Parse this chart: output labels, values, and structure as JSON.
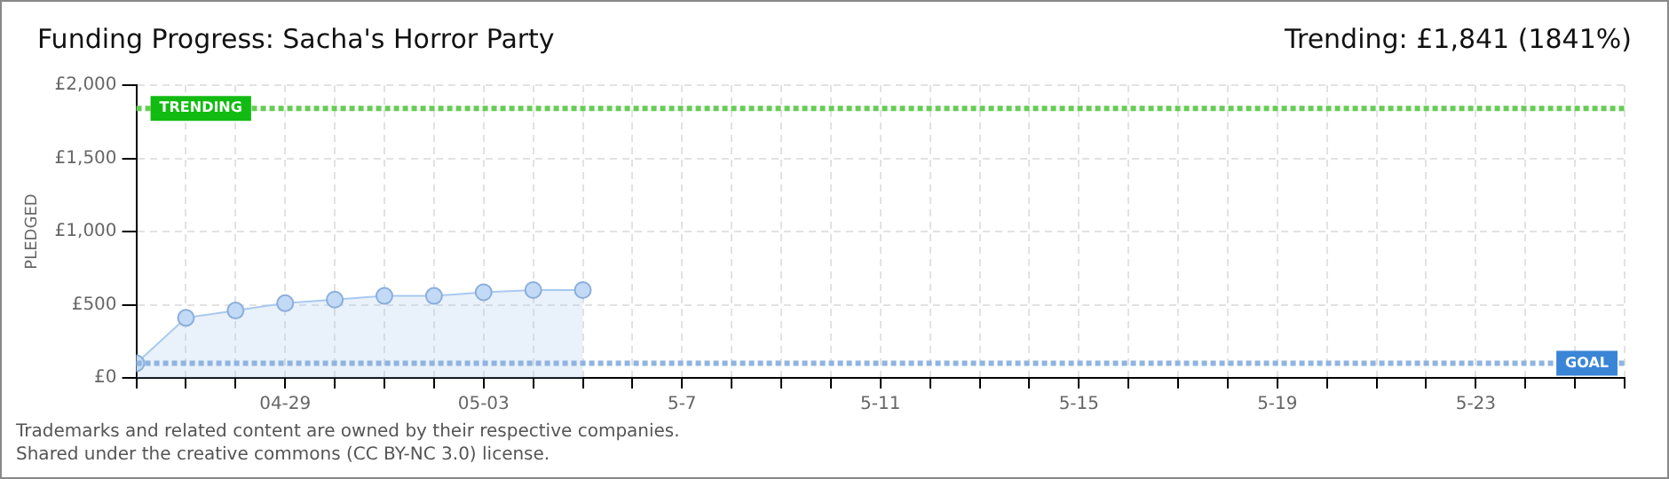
{
  "chart_data": {
    "type": "area",
    "title": "Funding Progress: Sacha's Horror Party",
    "subtitle": "Trending: £1,841 (1841%)",
    "ylabel": "PLEDGED",
    "x": [
      "--04-26",
      "--04-27",
      "--04-28",
      "--04-29",
      "--04-30",
      "--05-01",
      "--05-02",
      "--05-03",
      "--05-04",
      "--05-05"
    ],
    "series": [
      {
        "color": "#a9c9ef",
        "values": [
          100,
          410,
          460,
          510,
          535,
          560,
          560,
          585,
          600,
          600
        ]
      }
    ],
    "xlim": [
      "--04-26",
      "--05-26"
    ],
    "xticks": [
      {
        "value": "--04-26",
        "label": null
      },
      {
        "value": "--04-27",
        "label": null
      },
      {
        "value": "--04-28",
        "label": null
      },
      {
        "value": "--04-29",
        "label": "04-29"
      },
      {
        "value": "--04-30",
        "label": null
      },
      {
        "value": "--05-01",
        "label": null
      },
      {
        "value": "--05-02",
        "label": null
      },
      {
        "value": "--05-03",
        "label": "05-03"
      },
      {
        "value": "--05-04",
        "label": null
      },
      {
        "value": "--05-05",
        "label": null
      },
      {
        "value": "--05-06",
        "label": null
      },
      {
        "value": "--05-07",
        "label": "5-7"
      },
      {
        "value": "--05-08",
        "label": null
      },
      {
        "value": "--05-09",
        "label": null
      },
      {
        "value": "--05-10",
        "label": null
      },
      {
        "value": "--05-11",
        "label": "5-11"
      },
      {
        "value": "--05-12",
        "label": null
      },
      {
        "value": "--05-13",
        "label": null
      },
      {
        "value": "--05-14",
        "label": null
      },
      {
        "value": "--05-15",
        "label": "5-15"
      },
      {
        "value": "--05-16",
        "label": null
      },
      {
        "value": "--05-17",
        "label": null
      },
      {
        "value": "--05-18",
        "label": null
      },
      {
        "value": "--05-19",
        "label": "5-19"
      },
      {
        "value": "--05-20",
        "label": null
      },
      {
        "value": "--05-21",
        "label": null
      },
      {
        "value": "--05-22",
        "label": null
      },
      {
        "value": "--05-23",
        "label": "5-23"
      },
      {
        "value": "--05-24",
        "label": null
      },
      {
        "value": "--05-25",
        "label": null
      },
      {
        "value": "--05-26",
        "label": null
      }
    ],
    "ylim": [
      0,
      2000
    ],
    "yticks": [
      {
        "value": 0,
        "label": "£0"
      },
      {
        "value": 500,
        "label": "£500"
      },
      {
        "value": 1000,
        "label": "£1,000"
      },
      {
        "value": 1500,
        "label": "£1,500"
      },
      {
        "value": 2000,
        "label": "£2,000"
      }
    ],
    "ref_lines": [
      {
        "axis": "y",
        "value": 1841,
        "label": "TRENDING",
        "color": "#66cc55",
        "line_style": "dotted"
      },
      {
        "axis": "y",
        "value": 100,
        "label": "GOAL",
        "color": "#8fb4e0",
        "line_style": "dotted"
      }
    ],
    "grid": true,
    "marker": "circle",
    "legend": false,
    "annotations": [
      "Trademarks and related content are owned by their respective companies.",
      "Shared under the creative commons (CC BY-NC 3.0) license."
    ]
  }
}
